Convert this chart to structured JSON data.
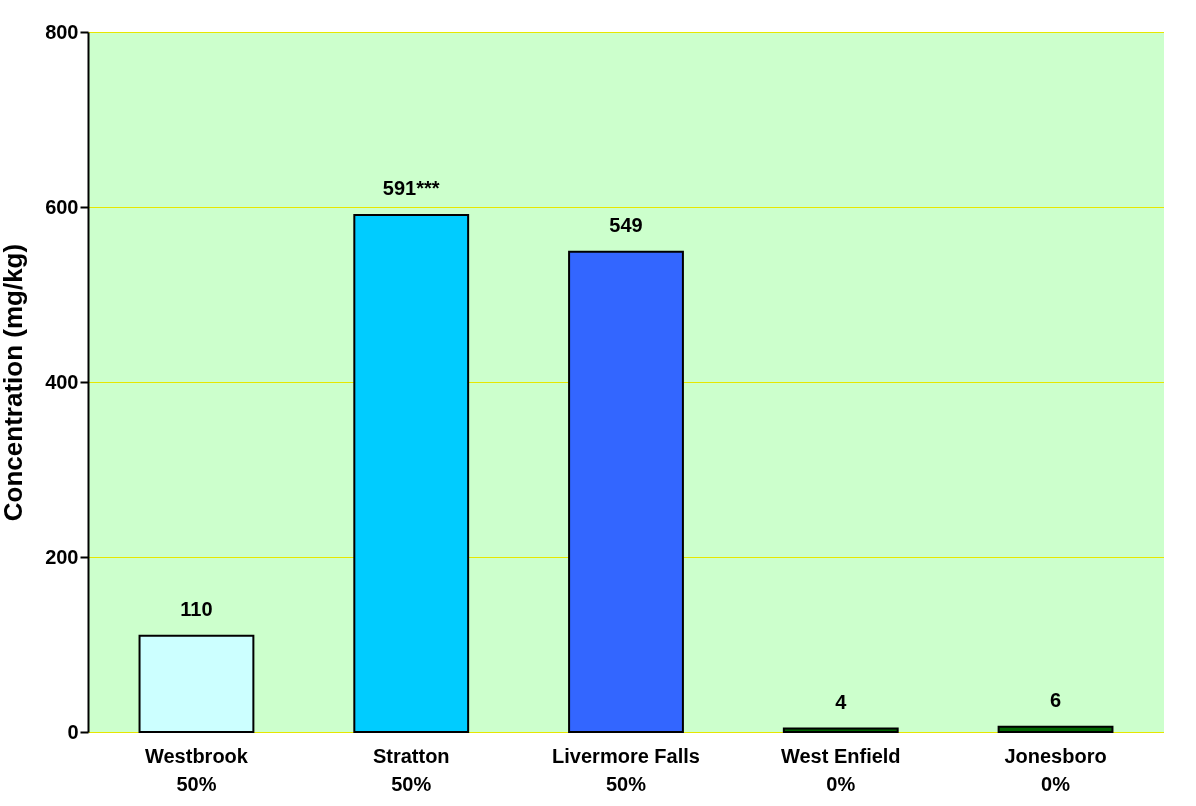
{
  "chart_data": {
    "type": "bar",
    "ylabel": "Concentration (mg/kg)",
    "categories": [
      "Westbrook\n50%",
      "Stratton\n50%",
      "Livermore Falls\n50%",
      "West Enfield\n0%",
      "Jonesboro\n0%"
    ],
    "values": [
      110,
      591,
      549,
      4,
      6
    ],
    "colors": [
      "#ccffff",
      "#00ccff",
      "#3366ff",
      "#006600",
      "#006600"
    ],
    "value_labels": [
      "110",
      "591***",
      "549",
      "4",
      "6"
    ],
    "ylim": [
      0,
      800
    ],
    "yticks": [
      0,
      200,
      400,
      600,
      800
    ],
    "grid": "y"
  }
}
